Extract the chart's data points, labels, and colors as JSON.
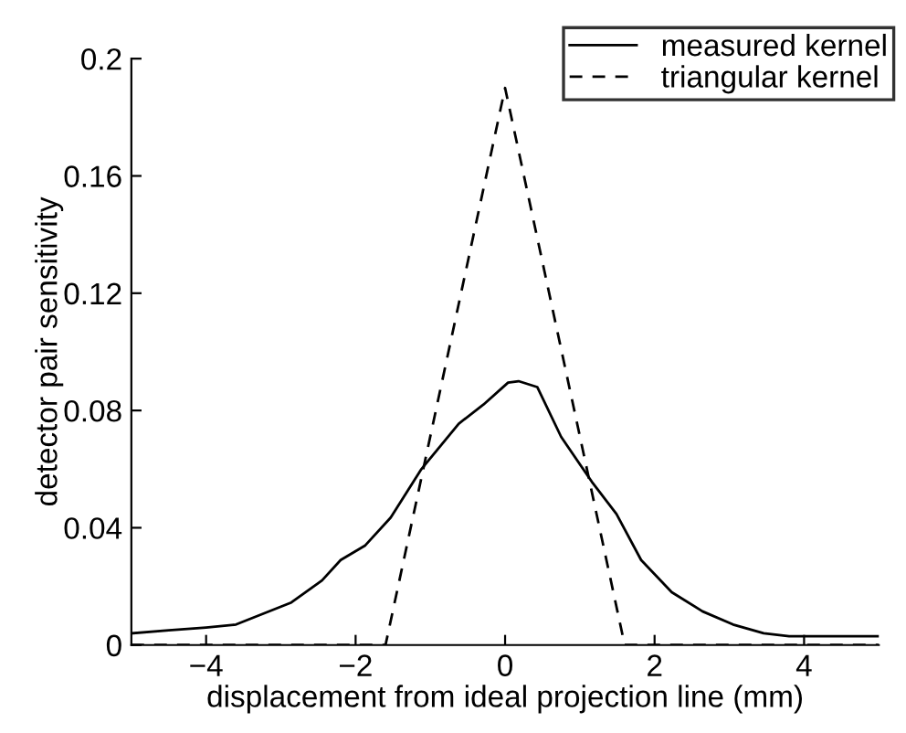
{
  "chart_data": {
    "type": "line",
    "xlabel": "displacement from ideal projection line (mm)",
    "ylabel": "detector pair sensitivity",
    "xlim": [
      -5,
      5
    ],
    "ylim": [
      0,
      0.2
    ],
    "xticks": [
      {
        "value": -4,
        "label": "−4"
      },
      {
        "value": -2,
        "label": "−2"
      },
      0,
      2,
      4
    ],
    "yticks": [
      0,
      0.04,
      0.08,
      0.12,
      0.16,
      0.2
    ],
    "grid": false,
    "legend": "top right",
    "marker": "none",
    "series": [
      {
        "name": "measured kernel",
        "color": "#000000",
        "line_style": "solid",
        "x": [
          -5,
          -4.5,
          -4,
          -3.6,
          -2.86,
          -2.45,
          -2.2,
          -1.87,
          -1.53,
          -1.12,
          -0.62,
          -0.29,
          0.04,
          0.18,
          0.43,
          0.75,
          1.16,
          1.49,
          1.82,
          2.23,
          2.64,
          3.05,
          3.46,
          3.8,
          4.4,
          5
        ],
        "values": [
          0.004,
          0.005,
          0.006,
          0.007,
          0.0145,
          0.022,
          0.029,
          0.034,
          0.0435,
          0.06,
          0.0755,
          0.082,
          0.0895,
          0.09,
          0.088,
          0.071,
          0.0557,
          0.0447,
          0.029,
          0.018,
          0.0115,
          0.007,
          0.004,
          0.003,
          0.003,
          0.003
        ]
      },
      {
        "name": "triangular kernel",
        "color": "#000000",
        "line_style": "dashed",
        "x": [
          -5,
          -1.6,
          0,
          1.6,
          5
        ],
        "values": [
          0,
          0,
          0.19,
          0,
          0
        ]
      }
    ]
  }
}
